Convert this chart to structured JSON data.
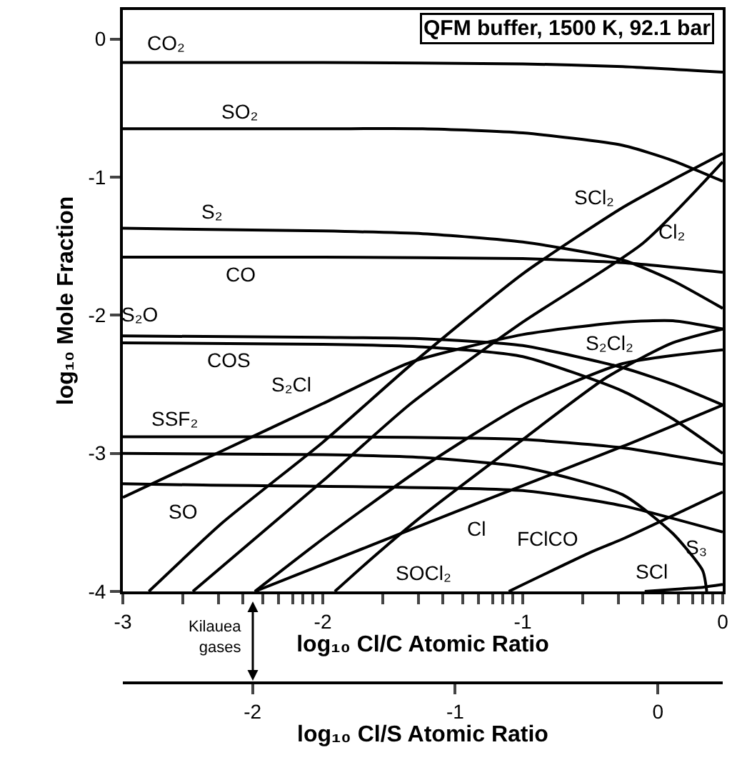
{
  "chart_data": {
    "type": "line",
    "title": "QFM buffer, 1500 K, 92.1 bar",
    "xlabel": "log₁₀ Cl/C Atomic Ratio",
    "ylabel": "log₁₀ Mole Fraction",
    "x2label": "log₁₀ Cl/S Atomic Ratio",
    "xlim": [
      -3,
      0
    ],
    "ylim": [
      -4,
      0.21
    ],
    "x2lim": [
      -2.64,
      0.32
    ],
    "xticks": [
      -3,
      {
        "value": -2.7,
        "label": null
      },
      {
        "value": -2.52,
        "label": null
      },
      {
        "value": -2.4,
        "label": null
      },
      {
        "value": -2.3,
        "label": null
      },
      {
        "value": -2.22,
        "label": null
      },
      {
        "value": -2.15,
        "label": null
      },
      {
        "value": -2.1,
        "label": null
      },
      {
        "value": -2.05,
        "label": null
      },
      -2,
      {
        "value": -1.7,
        "label": null
      },
      {
        "value": -1.52,
        "label": null
      },
      {
        "value": -1.4,
        "label": null
      },
      {
        "value": -1.3,
        "label": null
      },
      {
        "value": -1.22,
        "label": null
      },
      {
        "value": -1.15,
        "label": null
      },
      {
        "value": -1.1,
        "label": null
      },
      {
        "value": -1.05,
        "label": null
      },
      -1,
      {
        "value": -0.7,
        "label": null
      },
      {
        "value": -0.52,
        "label": null
      },
      {
        "value": -0.4,
        "label": null
      },
      {
        "value": -0.3,
        "label": null
      },
      {
        "value": -0.22,
        "label": null
      },
      {
        "value": -0.15,
        "label": null
      },
      {
        "value": -0.1,
        "label": null
      },
      {
        "value": -0.05,
        "label": null
      },
      0
    ],
    "x2ticks": [
      -2,
      -1,
      0
    ],
    "yticks": [
      0,
      -1,
      -2,
      -3,
      -4
    ],
    "line_style": "solid",
    "annotations": [
      {
        "text": "Kilauea\ngases",
        "x": -2.35,
        "y": -4
      }
    ],
    "series": [
      {
        "name": "CO₂",
        "color": "#000000",
        "x": [
          -3,
          -2,
          -1,
          -0.5,
          0
        ],
        "values": [
          -0.17,
          -0.17,
          -0.18,
          -0.2,
          -0.24
        ]
      },
      {
        "name": "SO₂",
        "color": "#000000",
        "x": [
          -3,
          -2,
          -1.5,
          -1,
          -0.5,
          -0.25,
          0
        ],
        "values": [
          -0.65,
          -0.65,
          -0.65,
          -0.68,
          -0.77,
          -0.88,
          -1.03
        ]
      },
      {
        "name": "S₂",
        "color": "#000000",
        "x": [
          -3,
          -2,
          -1.5,
          -1,
          -0.5,
          -0.25,
          0
        ],
        "values": [
          -1.37,
          -1.39,
          -1.41,
          -1.47,
          -1.6,
          -1.75,
          -1.95
        ]
      },
      {
        "name": "CO",
        "color": "#000000",
        "x": [
          -3,
          -2,
          -1,
          -0.5,
          0
        ],
        "values": [
          -1.58,
          -1.58,
          -1.59,
          -1.62,
          -1.69
        ]
      },
      {
        "name": "S₂O",
        "color": "#000000",
        "x": [
          -3,
          -2,
          -1.5,
          -1,
          -0.5,
          -0.25,
          0
        ],
        "values": [
          -2.15,
          -2.16,
          -2.17,
          -2.22,
          -2.38,
          -2.5,
          -2.65
        ]
      },
      {
        "name": "COS",
        "color": "#000000",
        "x": [
          -3,
          -2,
          -1.5,
          -1,
          -0.5,
          -0.25,
          0
        ],
        "values": [
          -2.2,
          -2.21,
          -2.23,
          -2.3,
          -2.55,
          -2.75,
          -3.0
        ]
      },
      {
        "name": "S₂Cl",
        "color": "#000000",
        "x": [
          -3,
          -2.5,
          -2,
          -1.56,
          -1,
          -0.5,
          -0.25,
          0
        ],
        "values": [
          -3.32,
          -2.98,
          -2.64,
          -2.34,
          -2.14,
          -2.05,
          -2.04,
          -2.1
        ]
      },
      {
        "name": "SSF₂",
        "color": "#000000",
        "x": [
          -3,
          -2,
          -1,
          -0.5,
          0
        ],
        "values": [
          -2.88,
          -2.88,
          -2.9,
          -2.96,
          -3.08
        ]
      },
      {
        "name": "S₃",
        "color": "#000000",
        "x": [
          -3,
          -2,
          -1.5,
          -1,
          -0.5,
          -0.25,
          -0.1,
          -0.08
        ],
        "values": [
          -3.0,
          -3.01,
          -3.03,
          -3.1,
          -3.3,
          -3.58,
          -3.85,
          -4.0
        ]
      },
      {
        "name": "SO",
        "color": "#000000",
        "x": [
          -3,
          -2.6,
          -1,
          -0.5,
          0
        ],
        "values": [
          -3.22,
          -3.23,
          -3.27,
          -3.38,
          -3.57
        ]
      },
      {
        "name": "SCl₂",
        "color": "#000000",
        "x": [
          -2.87,
          -2.5,
          -2,
          -1.56,
          -1,
          -0.5,
          -0.25,
          0
        ],
        "values": [
          -4,
          -3.5,
          -2.92,
          -2.36,
          -1.7,
          -1.22,
          -1.02,
          -0.83
        ]
      },
      {
        "name": "Cl₂",
        "color": "#000000",
        "x": [
          -2.65,
          -2,
          -1.56,
          -1,
          -0.4,
          0
        ],
        "values": [
          -4,
          -3.2,
          -2.64,
          -2.05,
          -1.48,
          -0.89
        ]
      },
      {
        "name": "SOCl₂",
        "color": "#000000",
        "x": [
          -1.94,
          -1.77,
          -1.5,
          -1,
          -0.58,
          -0.25,
          0
        ],
        "values": [
          -4,
          -3.78,
          -3.45,
          -2.9,
          -2.45,
          -2.2,
          -2.1
        ]
      },
      {
        "name": "Cl",
        "color": "#000000",
        "x": [
          -2.34,
          -1.33,
          -0.5,
          0
        ],
        "values": [
          -4,
          -3.42,
          -2.95,
          -2.65
        ]
      },
      {
        "name": "S₂Cl₂",
        "color": "#000000",
        "x": [
          -2.34,
          -2,
          -1.5,
          -1,
          -0.5,
          0
        ],
        "values": [
          -4,
          -3.62,
          -3.1,
          -2.65,
          -2.35,
          -2.25
        ]
      },
      {
        "name": "FClCO",
        "color": "#000000",
        "x": [
          -1.07,
          -0.65,
          -0.5,
          0
        ],
        "values": [
          -4,
          -3.71,
          -3.62,
          -3.28
        ]
      },
      {
        "name": "SCl",
        "color": "#000000",
        "x": [
          -0.39,
          -0.2,
          -0.1,
          0
        ],
        "values": [
          -4,
          -3.98,
          -3.97,
          -3.95
        ]
      }
    ]
  }
}
